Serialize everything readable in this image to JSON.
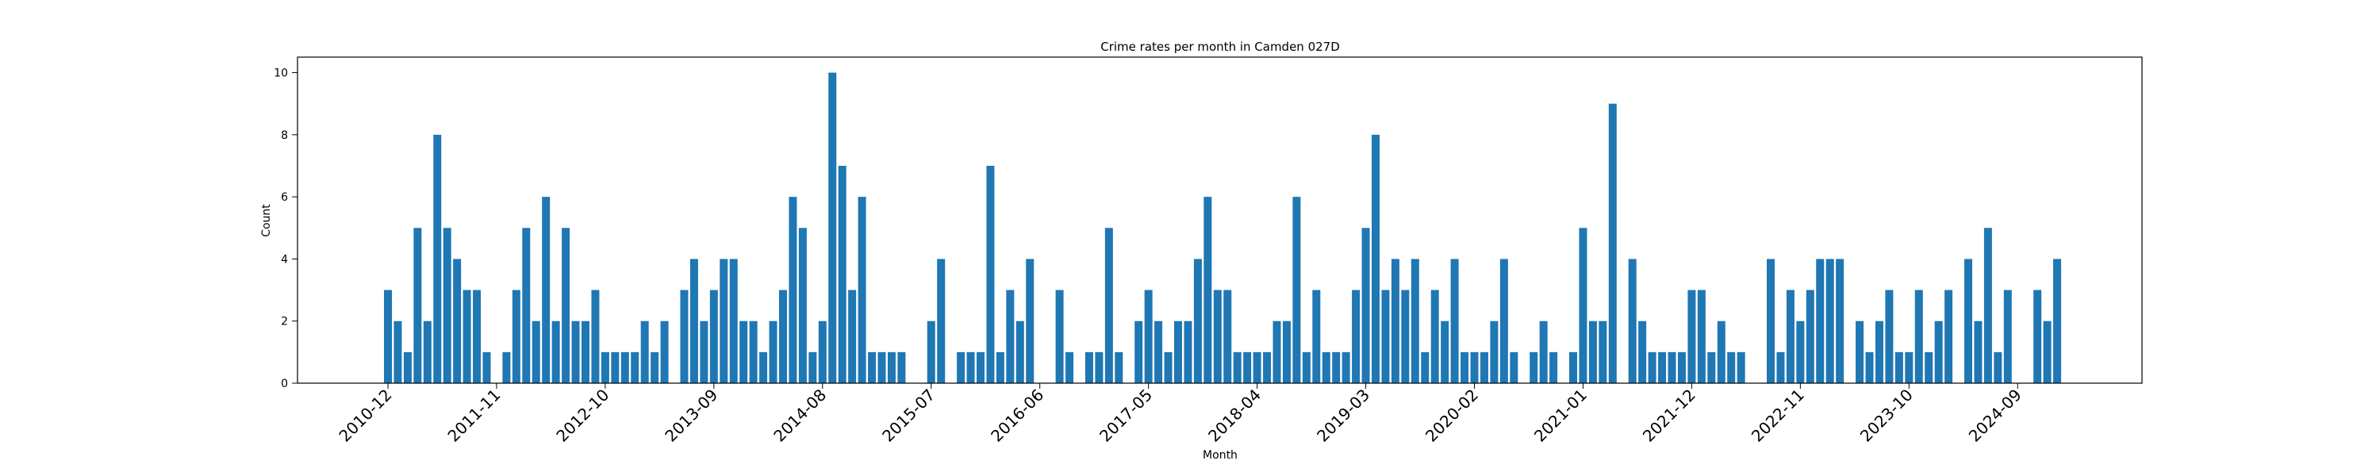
{
  "chart_data": {
    "type": "bar",
    "title": "Crime rates per month in Camden 027D",
    "xlabel": "Month",
    "ylabel": "Count",
    "ylim": [
      0,
      10.5
    ],
    "yticks": [
      0,
      2,
      4,
      6,
      8,
      10
    ],
    "xtick_labels": [
      "2010-12",
      "2011-11",
      "2012-10",
      "2013-09",
      "2014-08",
      "2015-07",
      "2016-06",
      "2017-05",
      "2018-04",
      "2019-03",
      "2020-02",
      "2021-01",
      "2021-12",
      "2022-11",
      "2023-10",
      "2024-09"
    ],
    "bar_color": "#1f77b4",
    "grid": false,
    "values": [
      3,
      2,
      1,
      5,
      2,
      8,
      5,
      4,
      3,
      3,
      1,
      0,
      1,
      3,
      5,
      2,
      6,
      2,
      5,
      2,
      2,
      3,
      1,
      1,
      1,
      1,
      2,
      1,
      2,
      0,
      3,
      4,
      2,
      3,
      4,
      4,
      2,
      2,
      1,
      2,
      3,
      6,
      5,
      1,
      2,
      10,
      7,
      3,
      6,
      1,
      1,
      1,
      1,
      0,
      0,
      2,
      4,
      0,
      1,
      1,
      1,
      7,
      1,
      3,
      2,
      4,
      0,
      0,
      3,
      1,
      0,
      1,
      1,
      5,
      1,
      0,
      2,
      3,
      2,
      1,
      2,
      2,
      4,
      6,
      3,
      3,
      1,
      1,
      1,
      1,
      2,
      2,
      6,
      1,
      3,
      1,
      1,
      1,
      3,
      5,
      8,
      3,
      4,
      3,
      4,
      1,
      3,
      2,
      4,
      1,
      1,
      1,
      2,
      4,
      1,
      0,
      1,
      2,
      1,
      0,
      1,
      5,
      2,
      2,
      9,
      0,
      4,
      2,
      1,
      1,
      1,
      1,
      3,
      3,
      1,
      2,
      1,
      1,
      0,
      0,
      4,
      1,
      3,
      2,
      3,
      4,
      4,
      4,
      0,
      2,
      1,
      2,
      3,
      1,
      1,
      3,
      1,
      2,
      3,
      0,
      4,
      2,
      5,
      1,
      3,
      0,
      0,
      3,
      2,
      4
    ]
  }
}
